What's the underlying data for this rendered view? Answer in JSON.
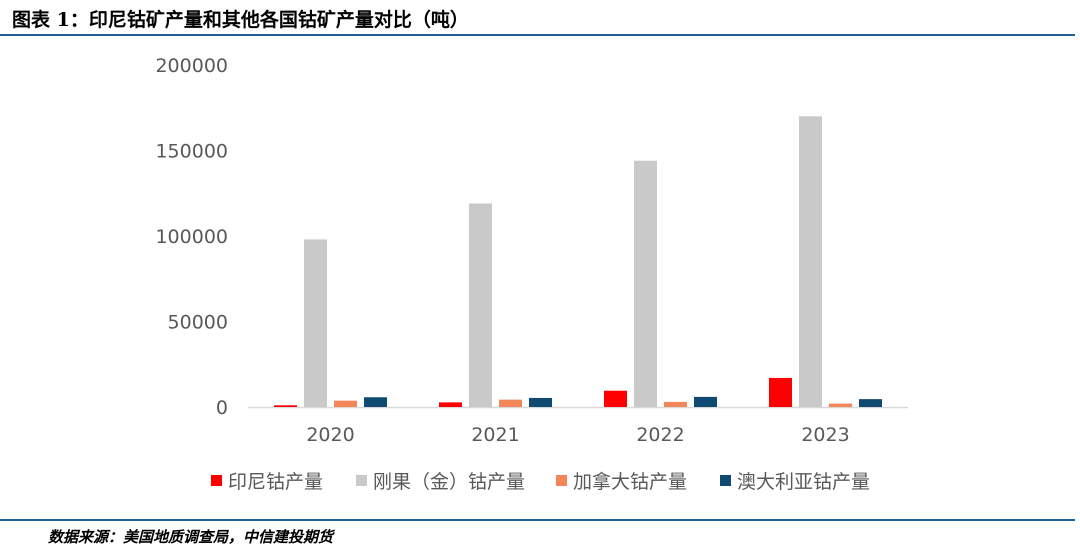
{
  "title": "图表 1：印尼钴矿产量和其他各国钴矿产量对比（吨）",
  "source": "数据来源：美国地质调查局，中信建投期货",
  "colors": {
    "rule": "#1f5f96",
    "indonesia": "#ff0000",
    "drc": "#c9c9c9",
    "canada": "#f4875a",
    "australia": "#0f4a73"
  },
  "chart_data": {
    "type": "bar",
    "categories": [
      "2020",
      "2021",
      "2022",
      "2023"
    ],
    "series": [
      {
        "name": "印尼钴产量",
        "values": [
          1000,
          2700,
          9500,
          17000
        ]
      },
      {
        "name": "刚果（金）钴产量",
        "values": [
          98000,
          119000,
          144000,
          170000
        ]
      },
      {
        "name": "加拿大钴产量",
        "values": [
          3700,
          4300,
          3000,
          2000
        ]
      },
      {
        "name": "澳大利亚钴产量",
        "values": [
          5700,
          5300,
          5900,
          4600
        ]
      }
    ],
    "yticks": [
      0,
      50000,
      100000,
      150000,
      200000
    ],
    "ylim": [
      0,
      200000
    ],
    "legend_position": "bottom",
    "grid": false
  }
}
